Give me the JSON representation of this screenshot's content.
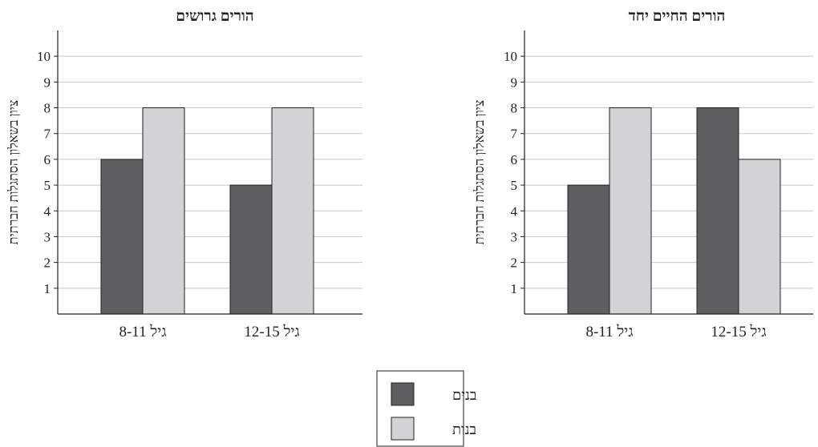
{
  "chart_data": [
    {
      "type": "bar",
      "title": "הורים גרושים",
      "ylabel": "ציון בשאלון הסתגלות חברתית",
      "xlabel": "",
      "categories": [
        "גיל 8-11",
        "גיל 12-15"
      ],
      "series": [
        {
          "name": "בנים",
          "values": [
            6,
            5
          ]
        },
        {
          "name": "בנות",
          "values": [
            8,
            8
          ]
        }
      ],
      "ylim": [
        0,
        11
      ],
      "yticks": [
        1,
        2,
        3,
        4,
        5,
        6,
        7,
        8,
        9,
        10
      ],
      "grid": true
    },
    {
      "type": "bar",
      "title": "הורים החיים יחד",
      "ylabel": "ציון בשאלון הסתגלות חברתית",
      "xlabel": "",
      "categories": [
        "גיל 8-11",
        "גיל 12-15"
      ],
      "series": [
        {
          "name": "בנים",
          "values": [
            5,
            8
          ]
        },
        {
          "name": "בנות",
          "values": [
            8,
            6
          ]
        }
      ],
      "ylim": [
        0,
        11
      ],
      "yticks": [
        1,
        2,
        3,
        4,
        5,
        6,
        7,
        8,
        9,
        10
      ],
      "grid": true
    }
  ],
  "legend": {
    "placement": "bottom-center",
    "items": [
      {
        "label": "בנים",
        "color": "#5f5f61"
      },
      {
        "label": "בנות",
        "color": "#d2d3d5"
      }
    ]
  },
  "colors": {
    "boys": "#5f5f61",
    "girls": "#d2d3d5",
    "grid": "#c8c8c8",
    "axis": "#222222"
  }
}
